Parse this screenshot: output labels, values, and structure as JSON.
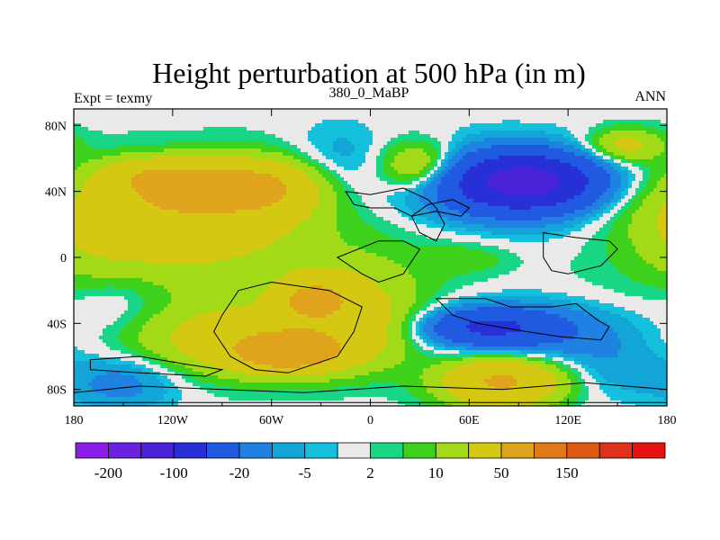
{
  "chart_data": {
    "type": "heatmap",
    "title": "Height perturbation at 500 hPa (in m)",
    "subtitle_left": "Expt = texmy",
    "subtitle_center": "380_0_MaBP",
    "subtitle_right": "ANN",
    "x_ticks": [
      "180",
      "120W",
      "60W",
      "0",
      "60E",
      "120E",
      "180"
    ],
    "x_tick_values": [
      -180,
      -120,
      -60,
      0,
      60,
      120,
      180
    ],
    "y_ticks": [
      "80N",
      "40N",
      "0",
      "40S",
      "80S"
    ],
    "y_tick_values": [
      80,
      40,
      0,
      -40,
      -80
    ],
    "xlim": [
      -180,
      180
    ],
    "ylim": [
      -90,
      90
    ],
    "colorbar": {
      "colors": [
        "#8b1ee6",
        "#6a22e0",
        "#4a22d8",
        "#2730d6",
        "#1f5ae0",
        "#1f82e2",
        "#14a5d8",
        "#14c0dc",
        "#e9e9e9",
        "#18d684",
        "#3dd11c",
        "#a2da18",
        "#d4c812",
        "#e0a31c",
        "#e07a18",
        "#e05a14",
        "#e0301a",
        "#e51212"
      ],
      "labels": [
        "-200",
        "-100",
        "-20",
        "-5",
        "2",
        "10",
        "50",
        "150"
      ]
    },
    "field_blobs": [
      {
        "lon": -90,
        "lat": 0,
        "rlon": 150,
        "rlat": 60,
        "value": 8
      },
      {
        "lon": -150,
        "lat": 30,
        "rlon": 55,
        "rlat": 22,
        "value": 12
      },
      {
        "lon": -120,
        "lat": 20,
        "rlon": 70,
        "rlat": 28,
        "value": 25
      },
      {
        "lon": -90,
        "lat": 43,
        "rlon": 45,
        "rlat": 14,
        "value": 55
      },
      {
        "lon": -135,
        "lat": 50,
        "rlon": 30,
        "rlat": 10,
        "value": 25
      },
      {
        "lon": -60,
        "lat": 40,
        "rlon": 30,
        "rlat": 20,
        "value": 18
      },
      {
        "lon": -20,
        "lat": 62,
        "rlon": 30,
        "rlat": 22,
        "value": -8
      },
      {
        "lon": 80,
        "lat": 45,
        "rlon": 60,
        "rlat": 22,
        "value": -40
      },
      {
        "lon": 95,
        "lat": 46,
        "rlon": 35,
        "rlat": 14,
        "value": -100
      },
      {
        "lon": 30,
        "lat": 55,
        "rlon": 25,
        "rlat": 15,
        "value": 30
      },
      {
        "lon": 120,
        "lat": 20,
        "rlon": 60,
        "rlat": 30,
        "value": -3
      },
      {
        "lon": 155,
        "lat": 68,
        "rlon": 22,
        "rlat": 10,
        "value": 25
      },
      {
        "lon": -155,
        "lat": -30,
        "rlon": 30,
        "rlat": 20,
        "value": -8
      },
      {
        "lon": -60,
        "lat": -50,
        "rlon": 75,
        "rlat": 20,
        "value": 35
      },
      {
        "lon": -50,
        "lat": -58,
        "rlon": 30,
        "rlat": 10,
        "value": 60
      },
      {
        "lon": -10,
        "lat": -30,
        "rlon": 40,
        "rlat": 25,
        "value": 20
      },
      {
        "lon": -35,
        "lat": -25,
        "rlon": 20,
        "rlat": 10,
        "value": 45
      },
      {
        "lon": 90,
        "lat": -45,
        "rlon": 65,
        "rlat": 18,
        "value": -25
      },
      {
        "lon": 70,
        "lat": -42,
        "rlon": 35,
        "rlat": 10,
        "value": -40
      },
      {
        "lon": 80,
        "lat": -75,
        "rlon": 35,
        "rlat": 15,
        "value": 55
      },
      {
        "lon": -150,
        "lat": -75,
        "rlon": 35,
        "rlat": 18,
        "value": -15
      },
      {
        "lon": 150,
        "lat": -68,
        "rlon": 30,
        "rlat": 18,
        "value": -8
      },
      {
        "lon": -30,
        "lat": -10,
        "rlon": 30,
        "rlat": 10,
        "value": 5
      },
      {
        "lon": 60,
        "lat": 0,
        "rlon": 30,
        "rlat": 10,
        "value": 6
      },
      {
        "lon": -170,
        "lat": 0,
        "rlon": 20,
        "rlat": 25,
        "value": 3
      }
    ]
  }
}
